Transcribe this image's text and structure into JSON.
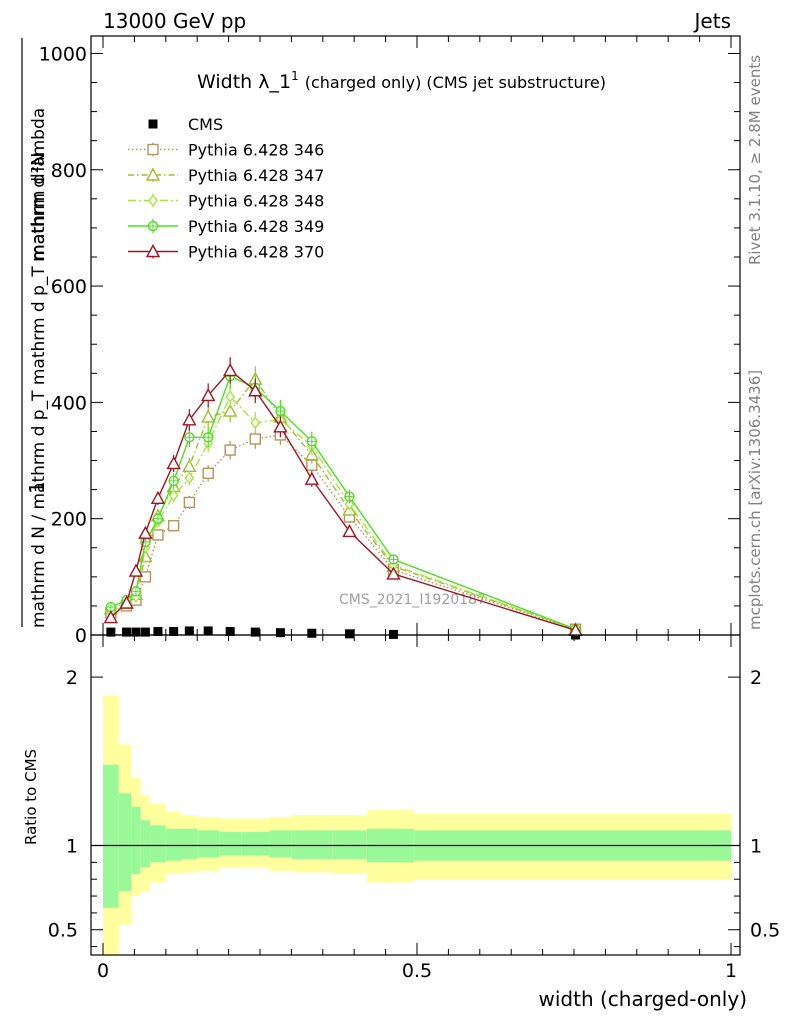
{
  "header": {
    "left": "13000 GeV pp",
    "right": "Jets"
  },
  "side": {
    "rivet": "Rivet 3.1.10, ≥ 2.8M events",
    "mcplots": "mcplots.cern.ch [arXiv:1306.3436]"
  },
  "watermark": "CMS_2021_I1920187",
  "chart_data": [
    {
      "type": "line",
      "title": "Width λ_1¹ (charged only) (CMS jet substructure)",
      "title_main": "Width λ_1",
      "title_sup": "1",
      "title_rest": "(charged only) (CMS jet substructure)",
      "ylabel_top": "1",
      "ylabel_num": "mathrm d²N",
      "ylabel_den": "mathrm d N / mathrm d p_T mathrm d p_T mathrm d lambda",
      "xlim": [
        0,
        1
      ],
      "ylim": [
        0,
        1030
      ],
      "yticks": [
        "0",
        "200",
        "400",
        "600",
        "800",
        "1000"
      ],
      "legend_position": "top-left",
      "x": [
        0.0125,
        0.0375,
        0.0525,
        0.0675,
        0.0875,
        0.1125,
        0.1375,
        0.1675,
        0.2025,
        0.2425,
        0.2825,
        0.3325,
        0.3925,
        0.4625,
        0.7525
      ],
      "series": [
        {
          "name": "CMS",
          "color": "#000000",
          "marker": "square-filled",
          "dash": "none",
          "values": [
            5,
            5,
            5,
            5,
            6,
            6,
            7,
            7,
            6,
            5,
            4,
            3,
            2,
            1,
            0
          ]
        },
        {
          "name": "Pythia 6.428 346",
          "color": "#b8935a",
          "marker": "square-open",
          "dash": "dotted",
          "values": [
            38,
            50,
            60,
            100,
            172,
            188,
            228,
            278,
            318,
            337,
            344,
            292,
            203,
            112,
            10
          ]
        },
        {
          "name": "Pythia 6.428 347",
          "color": "#9fbd2d",
          "marker": "triangle-open",
          "dash": "dashdot",
          "values": [
            45,
            55,
            70,
            135,
            205,
            255,
            290,
            375,
            385,
            440,
            375,
            310,
            215,
            118,
            10
          ]
        },
        {
          "name": "Pythia 6.428 348",
          "color": "#a6e63c",
          "marker": "diamond-open",
          "dash": "dashdot2",
          "values": [
            40,
            55,
            66,
            150,
            195,
            240,
            270,
            330,
            410,
            365,
            370,
            325,
            225,
            120,
            10
          ]
        },
        {
          "name": "Pythia 6.428 349",
          "color": "#4ce01f",
          "marker": "circle-cross",
          "dash": "solid",
          "values": [
            48,
            60,
            75,
            160,
            200,
            265,
            340,
            340,
            445,
            425,
            385,
            333,
            238,
            130,
            10
          ]
        },
        {
          "name": "Pythia 6.428 370",
          "color": "#a01525",
          "marker": "triangle-open",
          "dash": "solid",
          "values": [
            30,
            55,
            110,
            175,
            235,
            295,
            370,
            412,
            455,
            420,
            358,
            268,
            178,
            105,
            8
          ]
        }
      ]
    },
    {
      "type": "area",
      "ylabel": "Ratio to CMS",
      "xlabel": "width (charged-only)",
      "xlim": [
        0,
        1
      ],
      "ylim": [
        0.35,
        2.25
      ],
      "yticks": [
        "0.5",
        "1",
        "2"
      ],
      "xticks": [
        "0",
        "0.5",
        "1"
      ],
      "band_colors": {
        "inner": "#99f999",
        "outer": "#ffff9e"
      },
      "bin_edges": [
        0,
        0.025,
        0.045,
        0.06,
        0.075,
        0.1,
        0.125,
        0.15,
        0.185,
        0.22,
        0.265,
        0.3,
        0.365,
        0.42,
        0.495,
        1.0
      ],
      "inner_band": {
        "lo": [
          0.63,
          0.73,
          0.83,
          0.87,
          0.9,
          0.91,
          0.92,
          0.93,
          0.94,
          0.94,
          0.93,
          0.92,
          0.92,
          0.9,
          0.91
        ],
        "hi": [
          1.48,
          1.31,
          1.23,
          1.15,
          1.12,
          1.1,
          1.1,
          1.09,
          1.08,
          1.08,
          1.09,
          1.09,
          1.09,
          1.1,
          1.09
        ]
      },
      "outer_band": {
        "lo": [
          0.3,
          0.53,
          0.7,
          0.73,
          0.78,
          0.83,
          0.84,
          0.85,
          0.87,
          0.87,
          0.85,
          0.84,
          0.83,
          0.78,
          0.8
        ],
        "hi": [
          1.89,
          1.6,
          1.4,
          1.3,
          1.25,
          1.2,
          1.18,
          1.17,
          1.16,
          1.16,
          1.17,
          1.18,
          1.18,
          1.21,
          1.19
        ]
      }
    }
  ]
}
